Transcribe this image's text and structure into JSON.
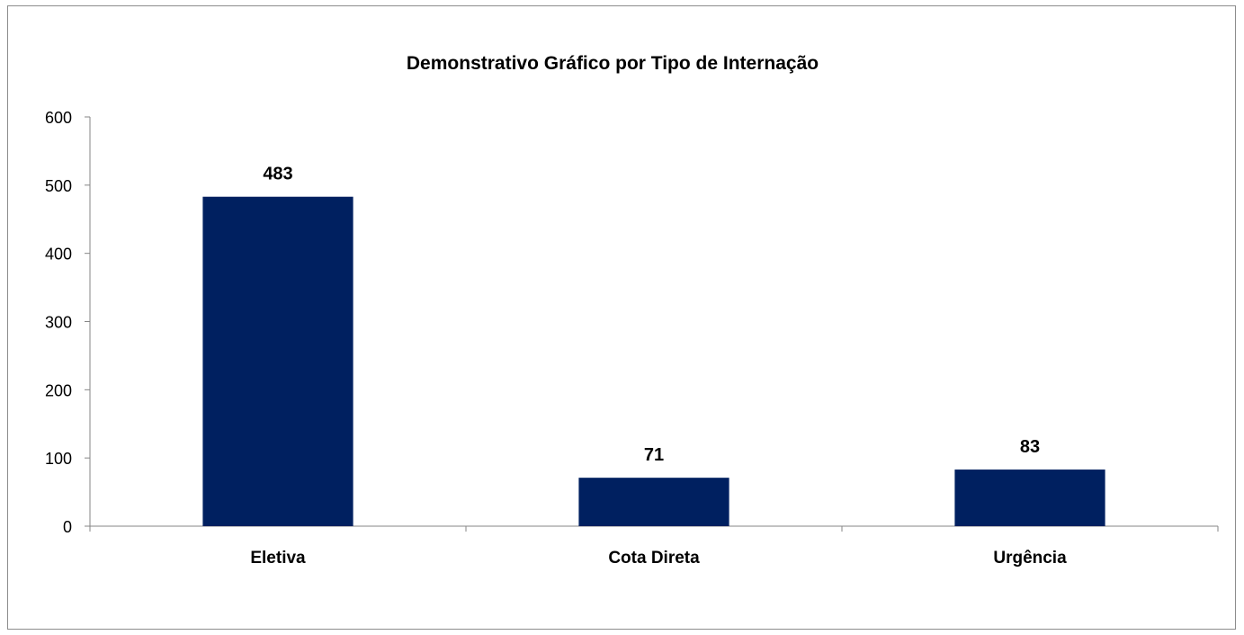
{
  "chart_data": {
    "type": "bar",
    "title": "Demonstrativo Gráfico por Tipo de Internação",
    "categories": [
      "Eletiva",
      "Cota Direta",
      "Urgência"
    ],
    "values": [
      483,
      71,
      83
    ],
    "data_labels": [
      "483",
      "71",
      "83"
    ],
    "y_ticks": [
      "0",
      "100",
      "200",
      "300",
      "400",
      "500",
      "600"
    ],
    "ylim": [
      0,
      600
    ],
    "xlabel": "",
    "ylabel": "",
    "grid": false,
    "legend": "none",
    "bar_color": "#002060"
  }
}
